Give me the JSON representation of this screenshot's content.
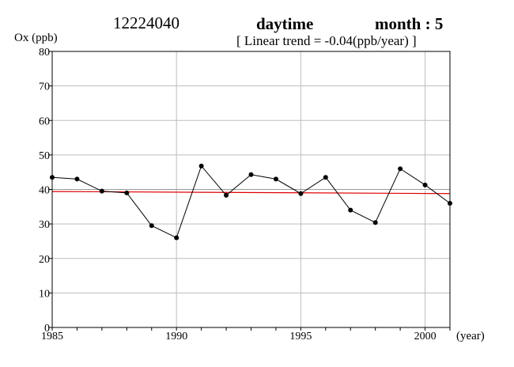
{
  "header": {
    "station": "12224040",
    "period": "daytime",
    "month": "month : 5",
    "trend": "[ Linear trend = -0.04(ppb/year) ]"
  },
  "chart_data": {
    "type": "line",
    "ylabel": "Ox (ppb)",
    "xlabel": "(year)",
    "xlim": [
      1985,
      2001
    ],
    "ylim": [
      0,
      80
    ],
    "x_ticks": [
      1985,
      1990,
      1995,
      2000
    ],
    "y_ticks": [
      0,
      10,
      20,
      30,
      40,
      50,
      60,
      70,
      80
    ],
    "grid": true,
    "series": [
      {
        "color": "#000000",
        "markers": true,
        "points": [
          {
            "x": 1985,
            "y": 43.5
          },
          {
            "x": 1986,
            "y": 43.0
          },
          {
            "x": 1987,
            "y": 39.5
          },
          {
            "x": 1988,
            "y": 39.0
          },
          {
            "x": 1989,
            "y": 29.5
          },
          {
            "x": 1990,
            "y": 26.0
          },
          {
            "x": 1991,
            "y": 46.8
          },
          {
            "x": 1992,
            "y": 38.3
          },
          {
            "x": 1993,
            "y": 44.3
          },
          {
            "x": 1994,
            "y": 43.0
          },
          {
            "x": 1995,
            "y": 38.8
          },
          {
            "x": 1996,
            "y": 43.5
          },
          {
            "x": 1997,
            "y": 34.0
          },
          {
            "x": 1998,
            "y": 30.4
          },
          {
            "x": 1999,
            "y": 46.0
          },
          {
            "x": 2000,
            "y": 41.3
          },
          {
            "x": 2001,
            "y": 36.0
          }
        ]
      }
    ],
    "trend_line": {
      "color": "#e00000",
      "points": [
        {
          "x": 1985,
          "y": 39.4
        },
        {
          "x": 2001,
          "y": 38.8
        }
      ]
    },
    "reference_line": {
      "color": "#999999",
      "y": 40
    }
  }
}
